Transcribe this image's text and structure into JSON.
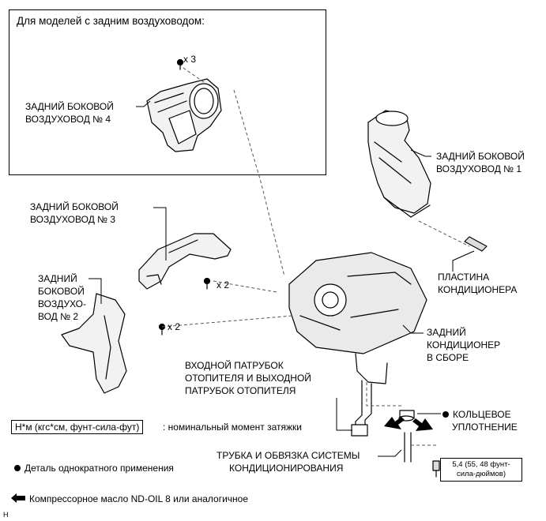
{
  "inset": {
    "title": "Для моделей с задним воздуховодом:"
  },
  "labels": {
    "duct4_l1": "ЗАДНИЙ БОКОВОЙ",
    "duct4_l2": "ВОЗДУХОВОД № 4",
    "qty_inset": "x 3",
    "duct1_l1": "ЗАДНИЙ БОКОВОЙ",
    "duct1_l2": "ВОЗДУХОВОД № 1",
    "duct3_l1": "ЗАДНИЙ БОКОВОЙ",
    "duct3_l2": "ВОЗДУХОВОД № 3",
    "qty_duct3": "x 2",
    "duct2_l1": "ЗАДНИЙ",
    "duct2_l2": "БОКОВОЙ",
    "duct2_l3": "ВОЗДУХО-",
    "duct2_l4": "ВОД № 2",
    "qty_duct2": "x 2",
    "plate_l1": "ПЛАСТИНА",
    "plate_l2": "КОНДИЦИОНЕРА",
    "unit_l1": "ЗАДНИЙ",
    "unit_l2": "КОНДИЦИОНЕР",
    "unit_l3": "В СБОРЕ",
    "pipes_l1": "ВХОДНОЙ ПАТРУБОК",
    "pipes_l2": "ОТОПИТЕЛЯ И ВЫХОДНОЙ",
    "pipes_l3": "ПАТРУБОК ОТОПИТЕЛЯ",
    "oring_l1": "КОЛЬЦЕВОЕ",
    "oring_l2": "УПЛОТНЕНИЕ",
    "tube_l1": "ТРУБКА И ОБВЯЗКА СИСТЕМЫ",
    "tube_l2": "КОНДИЦИОНИРОВАНИЯ"
  },
  "torque": {
    "l1": "5,4 (55, 48 фунт-",
    "l2": "сила-дюймов)"
  },
  "legend": {
    "unit_box": "Н*м (кгс*см, фунт-сила-фут)",
    "unit_text": ": номинальный момент затяжки",
    "non_reusable": "Деталь однократного применения",
    "compressor_oil": "Компрессорное масло ND-OIL 8 или аналогичное"
  },
  "corner_mark": "H"
}
